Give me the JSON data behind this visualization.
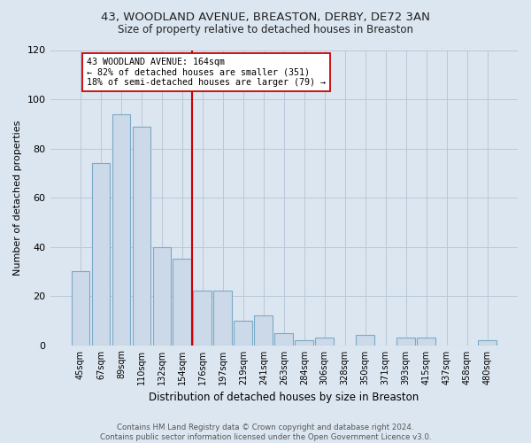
{
  "title_line1": "43, WOODLAND AVENUE, BREASTON, DERBY, DE72 3AN",
  "title_line2": "Size of property relative to detached houses in Breaston",
  "xlabel": "Distribution of detached houses by size in Breaston",
  "ylabel": "Number of detached properties",
  "footnote": "Contains HM Land Registry data © Crown copyright and database right 2024.\nContains public sector information licensed under the Open Government Licence v3.0.",
  "bar_labels": [
    "45sqm",
    "67sqm",
    "89sqm",
    "110sqm",
    "132sqm",
    "154sqm",
    "176sqm",
    "197sqm",
    "219sqm",
    "241sqm",
    "263sqm",
    "284sqm",
    "306sqm",
    "328sqm",
    "350sqm",
    "371sqm",
    "393sqm",
    "415sqm",
    "437sqm",
    "458sqm",
    "480sqm"
  ],
  "bar_values": [
    30,
    74,
    94,
    89,
    40,
    35,
    22,
    22,
    10,
    12,
    5,
    2,
    3,
    0,
    4,
    0,
    3,
    3,
    0,
    0,
    2
  ],
  "bar_color": "#ccd9e8",
  "bar_edge_color": "#7aaac8",
  "background_color": "#dce6f0",
  "grid_color": "#b8c8d8",
  "vline_x": 5.5,
  "vline_color": "#cc0000",
  "annotation_title": "43 WOODLAND AVENUE: 164sqm",
  "annotation_line2": "← 82% of detached houses are smaller (351)",
  "annotation_line3": "18% of semi-detached houses are larger (79) →",
  "annotation_box_color": "#ffffff",
  "annotation_box_edge": "#cc0000",
  "ylim": [
    0,
    120
  ],
  "yticks": [
    0,
    20,
    40,
    60,
    80,
    100,
    120
  ]
}
